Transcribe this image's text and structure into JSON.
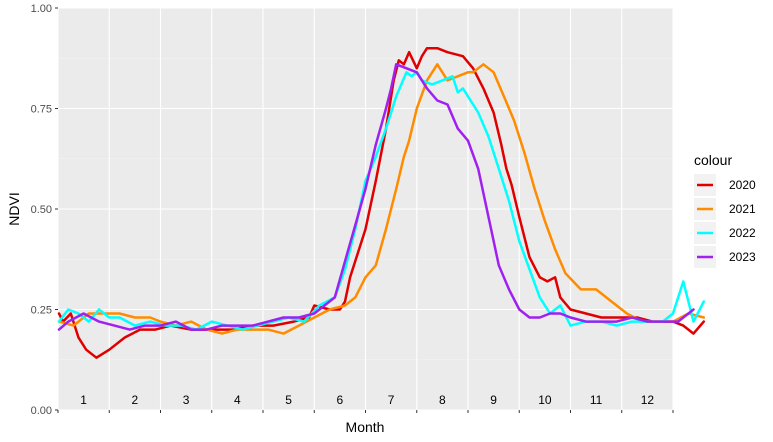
{
  "chart_data": {
    "type": "line",
    "title": "",
    "xlabel": "Month",
    "ylabel": "NDVI",
    "ylim": [
      0,
      1
    ],
    "xlim": [
      0,
      12
    ],
    "y_ticks": [
      "0.00",
      "0.25",
      "0.50",
      "0.75",
      "1.00"
    ],
    "month_labels": [
      "1",
      "2",
      "3",
      "4",
      "5",
      "6",
      "7",
      "8",
      "9",
      "10",
      "11",
      "12"
    ],
    "legend_title": "colour",
    "legend_position": "right",
    "grid": true,
    "series": [
      {
        "name": "2020",
        "color": "#E00000",
        "x": [
          0.02,
          0.1,
          0.25,
          0.4,
          0.55,
          0.75,
          1.0,
          1.3,
          1.6,
          1.9,
          2.2,
          2.6,
          3.0,
          3.4,
          3.8,
          4.2,
          4.6,
          4.9,
          5.0,
          5.3,
          5.5,
          5.6,
          5.7,
          5.85,
          6.0,
          6.2,
          6.4,
          6.55,
          6.65,
          6.75,
          6.85,
          7.0,
          7.1,
          7.2,
          7.4,
          7.6,
          7.9,
          8.1,
          8.3,
          8.5,
          8.65,
          8.75,
          8.85,
          9.0,
          9.2,
          9.4,
          9.55,
          9.7,
          9.8,
          10.0,
          10.3,
          10.6,
          11.0,
          11.3,
          11.6,
          11.8,
          12.0,
          12.2,
          12.4,
          12.6
        ],
        "y": [
          0.24,
          0.22,
          0.24,
          0.18,
          0.15,
          0.13,
          0.15,
          0.18,
          0.2,
          0.2,
          0.21,
          0.2,
          0.2,
          0.2,
          0.21,
          0.21,
          0.22,
          0.23,
          0.26,
          0.25,
          0.25,
          0.27,
          0.33,
          0.39,
          0.45,
          0.57,
          0.7,
          0.82,
          0.87,
          0.86,
          0.89,
          0.85,
          0.88,
          0.9,
          0.9,
          0.89,
          0.88,
          0.85,
          0.8,
          0.74,
          0.66,
          0.6,
          0.56,
          0.48,
          0.38,
          0.33,
          0.32,
          0.33,
          0.28,
          0.25,
          0.24,
          0.23,
          0.23,
          0.23,
          0.22,
          0.22,
          0.22,
          0.21,
          0.19,
          0.22
        ]
      },
      {
        "name": "2021",
        "color": "#FF8C00",
        "x": [
          0.02,
          0.3,
          0.6,
          0.9,
          1.2,
          1.5,
          1.8,
          2.0,
          2.3,
          2.6,
          2.9,
          3.2,
          3.5,
          3.8,
          4.1,
          4.4,
          4.7,
          5.0,
          5.3,
          5.6,
          5.8,
          6.0,
          6.2,
          6.4,
          6.6,
          6.75,
          6.85,
          7.0,
          7.2,
          7.4,
          7.6,
          7.8,
          8.0,
          8.1,
          8.3,
          8.5,
          8.7,
          8.9,
          9.1,
          9.3,
          9.5,
          9.7,
          9.9,
          10.2,
          10.5,
          10.8,
          11.1,
          11.4,
          11.7,
          12.0,
          12.3,
          12.6
        ],
        "y": [
          0.22,
          0.21,
          0.24,
          0.24,
          0.24,
          0.23,
          0.23,
          0.22,
          0.21,
          0.22,
          0.2,
          0.19,
          0.2,
          0.2,
          0.2,
          0.19,
          0.21,
          0.23,
          0.25,
          0.26,
          0.28,
          0.33,
          0.36,
          0.45,
          0.55,
          0.63,
          0.67,
          0.75,
          0.82,
          0.86,
          0.82,
          0.83,
          0.84,
          0.84,
          0.86,
          0.84,
          0.78,
          0.72,
          0.64,
          0.55,
          0.47,
          0.4,
          0.34,
          0.3,
          0.3,
          0.27,
          0.24,
          0.22,
          0.22,
          0.22,
          0.24,
          0.23
        ]
      },
      {
        "name": "2022",
        "color": "#00FFFF",
        "x": [
          0.02,
          0.2,
          0.4,
          0.6,
          0.8,
          1.0,
          1.2,
          1.5,
          1.8,
          2.1,
          2.4,
          2.7,
          3.0,
          3.3,
          3.6,
          3.9,
          4.2,
          4.5,
          4.8,
          5.1,
          5.4,
          5.6,
          5.8,
          6.0,
          6.2,
          6.4,
          6.6,
          6.8,
          6.9,
          7.0,
          7.1,
          7.3,
          7.5,
          7.7,
          7.8,
          7.9,
          8.0,
          8.2,
          8.4,
          8.6,
          8.8,
          9.0,
          9.2,
          9.4,
          9.6,
          9.8,
          10.0,
          10.3,
          10.6,
          10.9,
          11.2,
          11.5,
          11.8,
          12.0,
          12.2,
          12.4,
          12.6
        ],
        "y": [
          0.22,
          0.25,
          0.24,
          0.22,
          0.25,
          0.23,
          0.23,
          0.21,
          0.22,
          0.21,
          0.21,
          0.2,
          0.22,
          0.21,
          0.2,
          0.21,
          0.22,
          0.23,
          0.22,
          0.26,
          0.28,
          0.35,
          0.45,
          0.57,
          0.63,
          0.7,
          0.78,
          0.84,
          0.83,
          0.84,
          0.82,
          0.81,
          0.82,
          0.83,
          0.79,
          0.8,
          0.78,
          0.74,
          0.68,
          0.6,
          0.52,
          0.42,
          0.35,
          0.28,
          0.24,
          0.26,
          0.21,
          0.22,
          0.22,
          0.21,
          0.22,
          0.22,
          0.22,
          0.24,
          0.32,
          0.22,
          0.27
        ]
      },
      {
        "name": "2023",
        "color": "#A020F0",
        "x": [
          0.02,
          0.2,
          0.5,
          0.8,
          1.1,
          1.4,
          1.7,
          2.0,
          2.3,
          2.6,
          2.9,
          3.2,
          3.5,
          3.8,
          4.1,
          4.4,
          4.7,
          5.0,
          5.2,
          5.4,
          5.6,
          5.8,
          6.0,
          6.2,
          6.4,
          6.5,
          6.6,
          6.8,
          7.0,
          7.2,
          7.4,
          7.6,
          7.8,
          8.0,
          8.2,
          8.4,
          8.6,
          8.8,
          9.0,
          9.2,
          9.4,
          9.6,
          9.8,
          10.0,
          10.3,
          10.6,
          10.9,
          11.2,
          11.5,
          11.8,
          12.1,
          12.4
        ],
        "y": [
          0.2,
          0.22,
          0.24,
          0.22,
          0.21,
          0.2,
          0.21,
          0.21,
          0.22,
          0.2,
          0.2,
          0.21,
          0.21,
          0.21,
          0.22,
          0.23,
          0.23,
          0.24,
          0.26,
          0.28,
          0.37,
          0.46,
          0.55,
          0.66,
          0.75,
          0.8,
          0.86,
          0.85,
          0.84,
          0.8,
          0.77,
          0.76,
          0.7,
          0.67,
          0.6,
          0.48,
          0.36,
          0.3,
          0.25,
          0.23,
          0.23,
          0.24,
          0.24,
          0.23,
          0.22,
          0.22,
          0.22,
          0.23,
          0.22,
          0.22,
          0.22,
          0.25
        ]
      }
    ]
  }
}
